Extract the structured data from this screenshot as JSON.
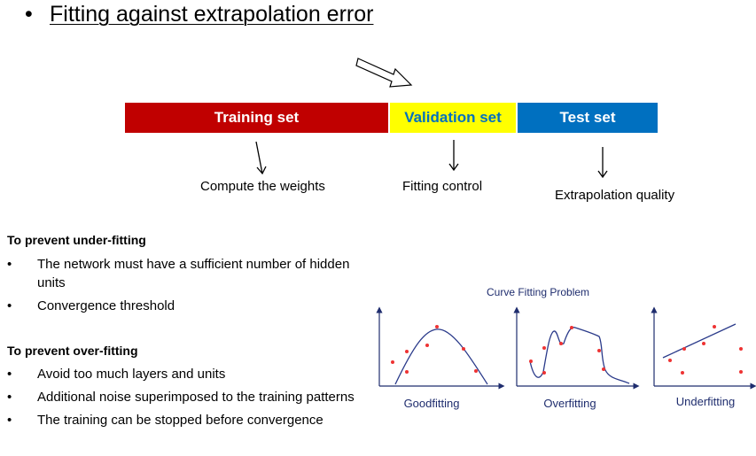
{
  "title": {
    "bullet": "•",
    "text": "Fitting against extrapolation error"
  },
  "colors": {
    "training": "#c00000",
    "validation": "#ffff00",
    "test": "#0070c0"
  },
  "bars": [
    {
      "label": "Training set",
      "bg": "#c00000",
      "fg": "#ffffff"
    },
    {
      "label": "Validation set",
      "bg": "#ffff00",
      "fg": "#0070c0"
    },
    {
      "label": "Test set",
      "bg": "#0070c0",
      "fg": "#ffffff"
    }
  ],
  "roles": {
    "training": "Compute the weights",
    "validation": "Fitting control",
    "test": "Extrapolation quality"
  },
  "underfit": {
    "heading": "To prevent under-fitting",
    "items": [
      "The network must have a sufficient number of hidden units",
      "Convergence threshold"
    ]
  },
  "overfit": {
    "heading": "To prevent over-fitting",
    "items": [
      "Avoid too much layers and units",
      "Additional noise superimposed to the training patterns",
      "The training can be stopped before convergence"
    ]
  },
  "figure": {
    "title": "Curve Fitting Problem",
    "panels": [
      "Goodfitting",
      "Overfitting",
      "Underfitting"
    ]
  }
}
